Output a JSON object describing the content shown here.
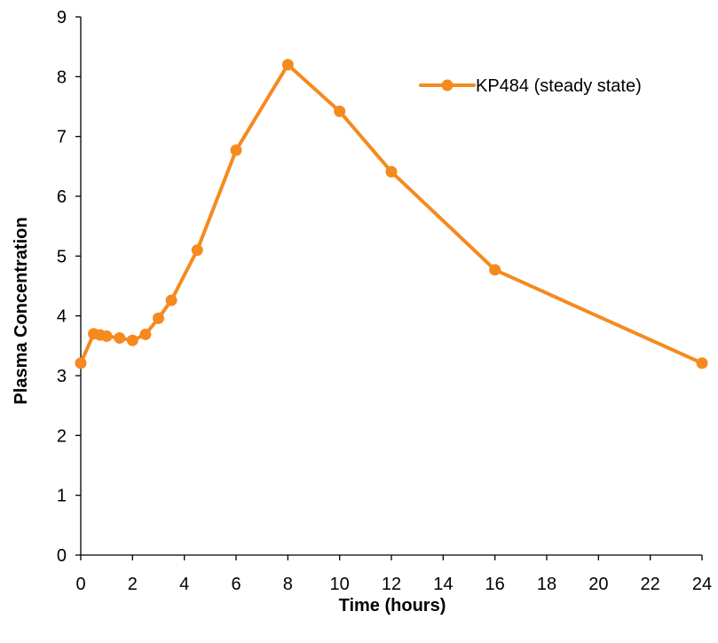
{
  "chart_data": {
    "type": "line",
    "title": "",
    "xlabel": "Time (hours)",
    "ylabel": "Plasma Concentration",
    "xlim": [
      0,
      24
    ],
    "ylim": [
      0,
      9
    ],
    "x_ticks": [
      0,
      2,
      4,
      6,
      8,
      10,
      12,
      14,
      16,
      18,
      20,
      22,
      24
    ],
    "y_ticks": [
      0,
      1,
      2,
      3,
      4,
      5,
      6,
      7,
      8,
      9
    ],
    "grid": false,
    "legend_position": "top-right",
    "series": [
      {
        "name": "KP484 (steady state)",
        "color": "#F58A1F",
        "marker": "circle",
        "x": [
          0,
          0.5,
          0.75,
          1,
          1.5,
          2,
          2.5,
          3,
          3.5,
          4.5,
          6,
          8,
          10,
          12,
          16,
          24
        ],
        "y": [
          3.21,
          3.7,
          3.68,
          3.66,
          3.63,
          3.59,
          3.69,
          3.96,
          4.26,
          5.1,
          6.77,
          8.2,
          7.42,
          6.41,
          4.77,
          3.21
        ]
      }
    ]
  }
}
